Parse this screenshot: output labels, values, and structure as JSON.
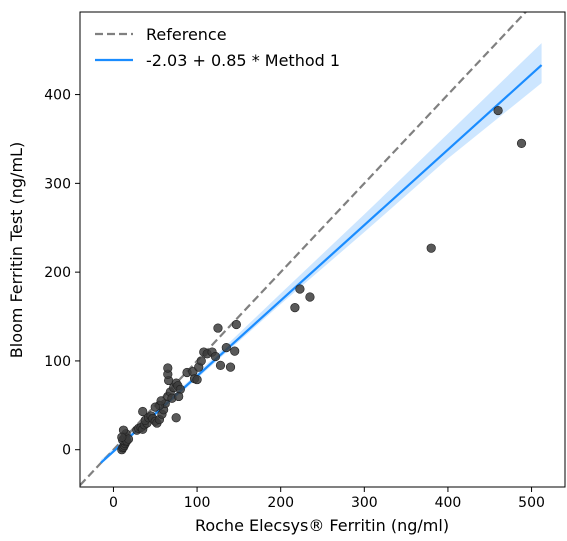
{
  "chart_data": {
    "type": "scatter",
    "xlabel": "Roche Elecsys® Ferritin (ng/ml)",
    "ylabel": "Bloom Ferritin Test (ng/mL)",
    "xlim": [
      -40,
      540
    ],
    "ylim": [
      -42,
      493
    ],
    "x_ticks": [
      0,
      100,
      200,
      300,
      400,
      500
    ],
    "y_ticks": [
      0,
      100,
      200,
      300,
      400
    ],
    "grid": false,
    "legend_position": "top-left",
    "legend": [
      {
        "label": "Reference",
        "style": "dashed",
        "color": "#808080"
      },
      {
        "label": "-2.03 + 0.85 * Method 1",
        "style": "solid",
        "color": "#1a8cff"
      }
    ],
    "reference_line": {
      "intercept": 0,
      "slope": 1
    },
    "regression": {
      "intercept": -2.03,
      "slope": 0.85,
      "x_range": [
        -15,
        512
      ],
      "ci_low": [
        [
          -15,
          -15.5
        ],
        [
          100,
          80
        ],
        [
          200,
          164
        ],
        [
          300,
          245
        ],
        [
          400,
          328
        ],
        [
          512,
          413
        ]
      ],
      "ci_high": [
        [
          -15,
          -11.5
        ],
        [
          100,
          86
        ],
        [
          200,
          176
        ],
        [
          300,
          265
        ],
        [
          400,
          356
        ],
        [
          512,
          458
        ]
      ]
    },
    "points": [
      [
        10,
        0
      ],
      [
        11,
        2
      ],
      [
        12,
        3
      ],
      [
        13,
        5
      ],
      [
        14,
        7
      ],
      [
        15,
        9
      ],
      [
        11,
        11
      ],
      [
        13,
        13
      ],
      [
        14,
        15
      ],
      [
        15,
        18
      ],
      [
        12,
        22
      ],
      [
        16,
        10
      ],
      [
        18,
        12
      ],
      [
        10,
        14
      ],
      [
        28,
        22
      ],
      [
        30,
        24
      ],
      [
        33,
        25
      ],
      [
        35,
        23
      ],
      [
        37,
        28
      ],
      [
        40,
        30
      ],
      [
        38,
        33
      ],
      [
        42,
        36
      ],
      [
        45,
        38
      ],
      [
        47,
        35
      ],
      [
        50,
        32
      ],
      [
        52,
        30
      ],
      [
        55,
        34
      ],
      [
        58,
        40
      ],
      [
        60,
        45
      ],
      [
        62,
        52
      ],
      [
        55,
        50
      ],
      [
        50,
        48
      ],
      [
        57,
        55
      ],
      [
        35,
        43
      ],
      [
        65,
        60
      ],
      [
        68,
        65
      ],
      [
        70,
        58
      ],
      [
        72,
        70
      ],
      [
        75,
        75
      ],
      [
        77,
        72
      ],
      [
        80,
        68
      ],
      [
        78,
        60
      ],
      [
        75,
        36
      ],
      [
        66,
        78
      ],
      [
        65,
        85
      ],
      [
        65,
        92
      ],
      [
        88,
        87
      ],
      [
        95,
        88
      ],
      [
        97,
        80
      ],
      [
        100,
        79
      ],
      [
        102,
        93
      ],
      [
        105,
        100
      ],
      [
        108,
        110
      ],
      [
        112,
        108
      ],
      [
        118,
        110
      ],
      [
        122,
        105
      ],
      [
        125,
        137
      ],
      [
        128,
        95
      ],
      [
        135,
        115
      ],
      [
        140,
        93
      ],
      [
        145,
        111
      ],
      [
        147,
        141
      ],
      [
        217,
        160
      ],
      [
        223,
        181
      ],
      [
        235,
        172
      ],
      [
        380,
        227
      ],
      [
        460,
        382
      ],
      [
        488,
        345
      ]
    ]
  }
}
